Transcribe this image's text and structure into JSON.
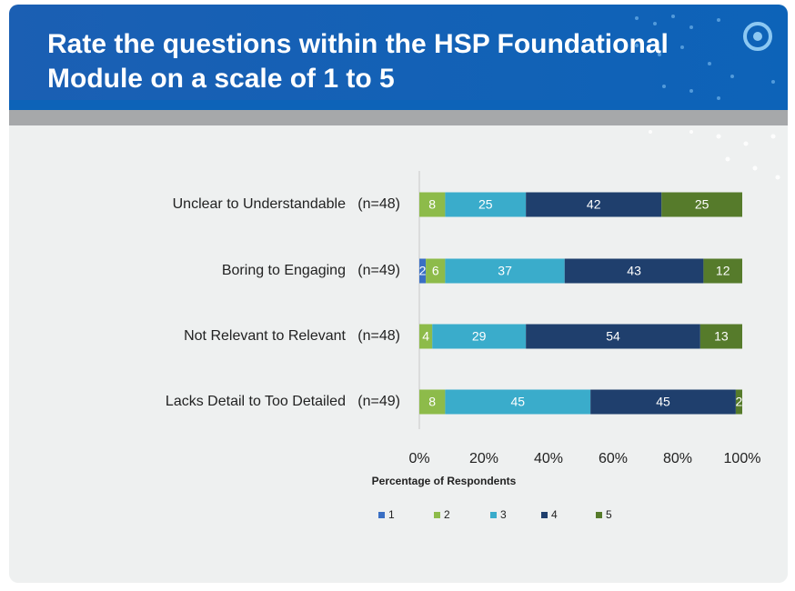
{
  "chart_data": {
    "type": "stacked_barh",
    "title": "Rate the questions within the HSP Foundational Module on a scale of 1 to 5",
    "categories": [
      "Unclear to Understandable   (n=48)",
      "Boring to Engaging   (n=49)",
      "Not Relevant to Relevant   (n=48)",
      "Lacks Detail to Too Detailed   (n=49)"
    ],
    "series": [
      {
        "name": "1",
        "color": "#3a6fc4",
        "values": [
          0,
          2,
          0,
          0
        ]
      },
      {
        "name": "2",
        "color": "#8dbb4a",
        "values": [
          8,
          6,
          4,
          8
        ]
      },
      {
        "name": "3",
        "color": "#3aaccb",
        "values": [
          25,
          37,
          29,
          45
        ]
      },
      {
        "name": "4",
        "color": "#1f3f6d",
        "values": [
          42,
          43,
          54,
          45
        ]
      },
      {
        "name": "5",
        "color": "#567b2b",
        "values": [
          25,
          12,
          13,
          2
        ]
      }
    ],
    "xlabel": "Percentage of Respondents",
    "xlim": [
      0,
      100
    ],
    "xticks": [
      {
        "value": 0,
        "label": "0%"
      },
      {
        "value": 20,
        "label": "20%"
      },
      {
        "value": 40,
        "label": "40%"
      },
      {
        "value": 60,
        "label": "60%"
      },
      {
        "value": 80,
        "label": "80%"
      },
      {
        "value": 100,
        "label": "100%"
      }
    ],
    "legend": "bottom"
  }
}
